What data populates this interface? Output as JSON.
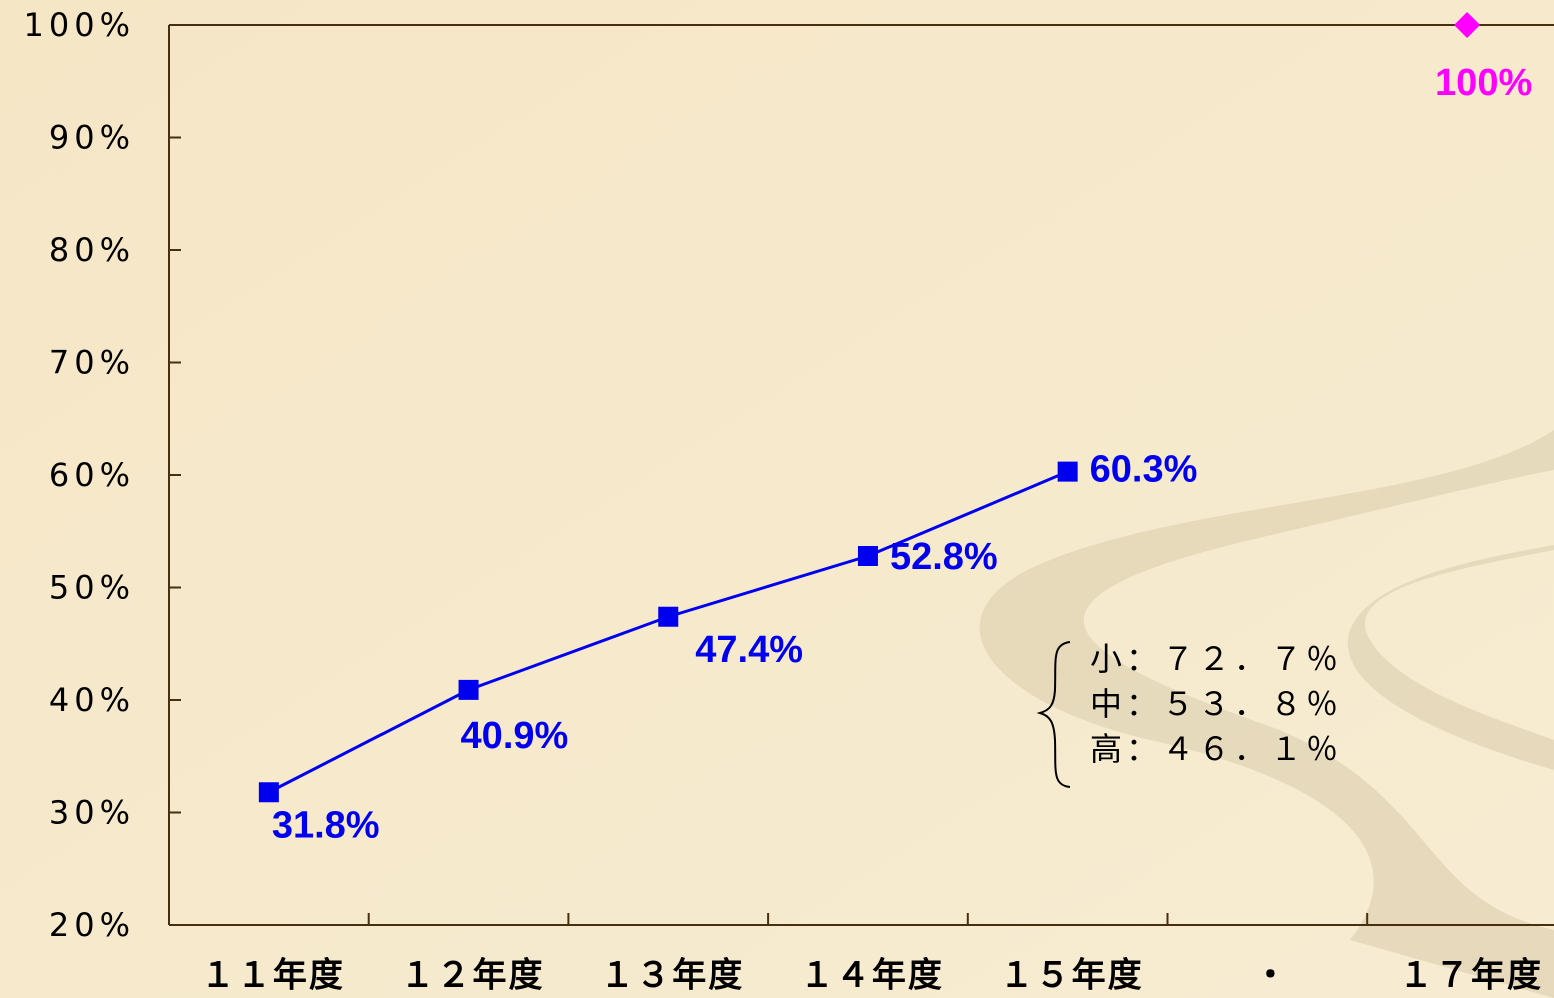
{
  "chart_data": {
    "type": "line",
    "categories": [
      "１１年度",
      "１２年度",
      "１３年度",
      "１４年度",
      "１５年度",
      "・",
      "１７年度"
    ],
    "series": [
      {
        "color": "#0000ee",
        "marker": "square",
        "values": [
          31.8,
          40.9,
          47.4,
          52.8,
          60.3,
          null,
          null
        ],
        "value_labels": [
          "31.8%",
          "40.9%",
          "47.4%",
          "52.8%",
          "60.3%",
          null,
          null
        ]
      },
      {
        "color": "#ff00ff",
        "marker": "diamond",
        "values": [
          null,
          null,
          null,
          null,
          null,
          null,
          100
        ],
        "value_labels": [
          null,
          null,
          null,
          null,
          null,
          null,
          "100%"
        ]
      }
    ],
    "ylim": [
      20,
      100
    ],
    "yticks": [
      {
        "value": 20,
        "label": "20%"
      },
      {
        "value": 30,
        "label": "30%"
      },
      {
        "value": 40,
        "label": "40%"
      },
      {
        "value": 50,
        "label": "50%"
      },
      {
        "value": 60,
        "label": "60%"
      },
      {
        "value": 70,
        "label": "70%"
      },
      {
        "value": 80,
        "label": "80%"
      },
      {
        "value": 90,
        "label": "90%"
      },
      {
        "value": 100,
        "label": "100%"
      }
    ],
    "grid": false,
    "annotations": [
      "小：７２．７％",
      "中：５３．８％",
      "高：４６．１％"
    ]
  }
}
